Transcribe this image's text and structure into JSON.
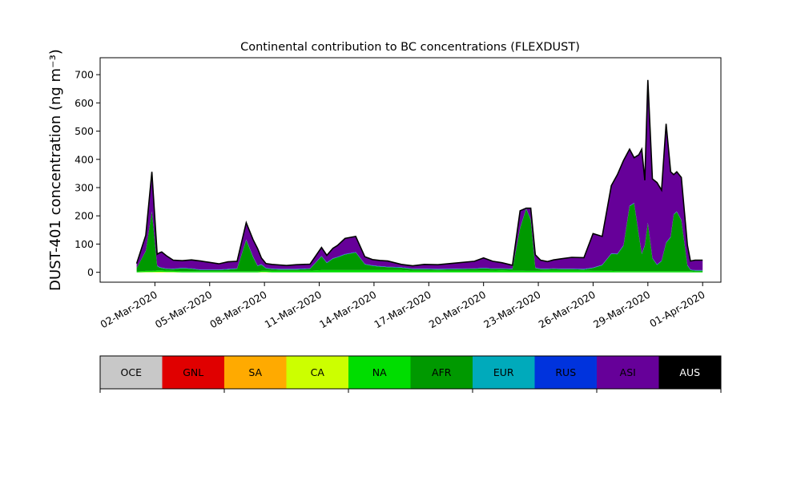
{
  "chart_data": {
    "type": "area",
    "stacked": true,
    "title": "Continental contribution to BC concentrations (FLEXDUST)",
    "ylabel": "DUST-401 concentration (ng m⁻³)",
    "xlabel": "",
    "x_axis_type": "date",
    "xlim": [
      "2020-02-28",
      "2020-04-02"
    ],
    "ylim": [
      -35,
      760
    ],
    "yticks": [
      0,
      100,
      200,
      300,
      400,
      500,
      600,
      700
    ],
    "xticks": [
      "02-Mar-2020",
      "05-Mar-2020",
      "08-Mar-2020",
      "11-Mar-2020",
      "14-Mar-2020",
      "17-Mar-2020",
      "20-Mar-2020",
      "23-Mar-2020",
      "26-Mar-2020",
      "29-Mar-2020",
      "01-Apr-2020"
    ],
    "grid": false,
    "legend_placement": "colorbar below plot",
    "x": [
      "2020-03-01 00:00",
      "2020-03-01 12:00",
      "2020-03-01 20:00",
      "2020-03-02 03:00",
      "2020-03-02 06:00",
      "2020-03-02 09:00",
      "2020-03-02 15:00",
      "2020-03-03 00:00",
      "2020-03-03 12:00",
      "2020-03-04 00:00",
      "2020-03-04 12:00",
      "2020-03-05 00:00",
      "2020-03-05 12:00",
      "2020-03-06 00:00",
      "2020-03-06 12:00",
      "2020-03-07 00:00",
      "2020-03-07 09:00",
      "2020-03-07 15:00",
      "2020-03-07 20:00",
      "2020-03-08 02:00",
      "2020-03-08 10:00",
      "2020-03-08 20:00",
      "2020-03-09 05:00",
      "2020-03-09 18:00",
      "2020-03-10 12:00",
      "2020-03-11 03:00",
      "2020-03-11 10:00",
      "2020-03-11 18:00",
      "2020-03-12 00:00",
      "2020-03-12 10:00",
      "2020-03-13 00:00",
      "2020-03-13 12:00",
      "2020-03-13 22:00",
      "2020-03-14 08:00",
      "2020-03-14 18:00",
      "2020-03-15 12:00",
      "2020-03-16 03:00",
      "2020-03-16 18:00",
      "2020-03-17 12:00",
      "2020-03-18 12:00",
      "2020-03-19 12:00",
      "2020-03-20 00:00",
      "2020-03-20 12:00",
      "2020-03-21 00:00",
      "2020-03-21 14:00",
      "2020-03-22 00:00",
      "2020-03-22 08:00",
      "2020-03-22 14:00",
      "2020-03-22 20:00",
      "2020-03-23 03:00",
      "2020-03-23 12:00",
      "2020-03-23 20:00",
      "2020-03-24 06:00",
      "2020-03-24 20:00",
      "2020-03-25 12:00",
      "2020-03-26 00:00",
      "2020-03-26 12:00",
      "2020-03-27 00:00",
      "2020-03-27 08:00",
      "2020-03-27 16:00",
      "2020-03-28 00:00",
      "2020-03-28 06:00",
      "2020-03-28 12:00",
      "2020-03-28 16:00",
      "2020-03-28 20:00",
      "2020-03-29 00:00",
      "2020-03-29 06:00",
      "2020-03-29 12:00",
      "2020-03-29 18:00",
      "2020-03-30 00:00",
      "2020-03-30 06:00",
      "2020-03-30 10:00",
      "2020-03-30 14:00",
      "2020-03-30 20:00",
      "2020-03-31 04:00",
      "2020-03-31 08:00",
      "2020-03-31 14:00",
      "2020-04-01 00:00"
    ],
    "series": [
      {
        "name": "OCE",
        "color": "#c8c8c8",
        "values": [
          0,
          0,
          0,
          0,
          0,
          0,
          0,
          0,
          0,
          0,
          0,
          0,
          0,
          0,
          0,
          0,
          0,
          0,
          0,
          0,
          0,
          0,
          0,
          0,
          0,
          0,
          0,
          0,
          0,
          0,
          0,
          0,
          0,
          0,
          0,
          0,
          0,
          0,
          0,
          0,
          0,
          0,
          0,
          0,
          0,
          0,
          0,
          0,
          0,
          0,
          0,
          0,
          0,
          0,
          0,
          0,
          0,
          0,
          0,
          0,
          0,
          0,
          0,
          0,
          0,
          0,
          0,
          0,
          0,
          0,
          0,
          0,
          0,
          0,
          0,
          0,
          0,
          0
        ]
      },
      {
        "name": "GNL",
        "color": "#e00000",
        "values": [
          0,
          0,
          0,
          0,
          0,
          0,
          0,
          0,
          0,
          0,
          0,
          0,
          0,
          0,
          0,
          0,
          0,
          0,
          0,
          0,
          0,
          0,
          0,
          0,
          0,
          0,
          0,
          0,
          0,
          0,
          0,
          0,
          0,
          0,
          0,
          0,
          0,
          0,
          0,
          0,
          0,
          0,
          0,
          0,
          0,
          0,
          0,
          0,
          0,
          0,
          0,
          0,
          0,
          0,
          0,
          0,
          0,
          0,
          0,
          0,
          0,
          0,
          0,
          0,
          0,
          0,
          0,
          0,
          0,
          0,
          0,
          0,
          0,
          0,
          0,
          0,
          0,
          0
        ]
      },
      {
        "name": "SA",
        "color": "#ffaa00",
        "values": [
          0,
          0,
          0,
          0,
          0,
          0,
          0,
          0,
          0,
          0,
          0,
          0,
          0,
          0,
          0,
          0,
          0,
          0,
          0,
          0,
          0,
          0,
          0,
          0,
          0,
          0,
          0,
          0,
          0,
          0,
          0,
          0,
          0,
          0,
          0,
          0,
          0,
          0,
          0,
          0,
          0,
          0,
          0,
          0,
          0,
          0,
          0,
          0,
          0,
          0,
          0,
          0,
          0,
          0,
          0,
          0,
          0,
          0,
          0,
          0,
          0,
          0,
          0,
          0,
          0,
          0,
          0,
          0,
          0,
          0,
          0,
          0,
          0,
          0,
          0,
          0,
          0,
          0
        ]
      },
      {
        "name": "CA",
        "color": "#ccff00",
        "values": [
          0,
          1,
          1,
          2,
          2,
          2,
          1,
          1,
          0,
          0,
          0,
          0,
          0,
          0,
          0,
          0,
          0,
          0,
          1,
          1,
          0,
          0,
          0,
          0,
          0,
          0,
          0,
          0,
          0,
          0,
          0,
          0,
          0,
          0,
          0,
          0,
          0,
          0,
          0,
          0,
          0,
          0,
          0,
          0,
          0,
          0,
          0,
          0,
          0,
          0,
          0,
          0,
          0,
          0,
          0,
          0,
          0,
          0,
          0,
          0,
          0,
          0,
          0,
          0,
          0,
          0,
          0,
          0,
          0,
          0,
          0,
          0,
          0,
          0,
          0,
          0,
          0,
          0
        ]
      },
      {
        "name": "NA",
        "color": "#00dd00",
        "values": [
          3,
          4,
          4,
          5,
          5,
          5,
          5,
          4,
          4,
          4,
          4,
          4,
          4,
          4,
          4,
          4,
          4,
          4,
          4,
          5,
          5,
          5,
          5,
          5,
          6,
          8,
          8,
          8,
          8,
          8,
          8,
          8,
          8,
          8,
          8,
          8,
          6,
          6,
          6,
          6,
          6,
          6,
          6,
          7,
          6,
          6,
          5,
          5,
          5,
          5,
          6,
          6,
          6,
          6,
          6,
          5,
          5,
          5,
          4,
          4,
          4,
          4,
          4,
          4,
          4,
          4,
          4,
          4,
          4,
          4,
          4,
          4,
          4,
          4,
          4,
          4,
          3,
          3
        ]
      },
      {
        "name": "AFR",
        "color": "#009900",
        "values": [
          12,
          70,
          210,
          15,
          10,
          8,
          6,
          6,
          10,
          8,
          4,
          4,
          4,
          6,
          8,
          110,
          50,
          18,
          22,
          8,
          6,
          5,
          5,
          5,
          6,
          48,
          25,
          40,
          45,
          55,
          62,
          20,
          15,
          12,
          10,
          8,
          5,
          5,
          4,
          5,
          6,
          8,
          6,
          5,
          5,
          150,
          220,
          180,
          10,
          6,
          5,
          6,
          5,
          5,
          4,
          10,
          20,
          60,
          60,
          90,
          230,
          240,
          130,
          60,
          90,
          170,
          45,
          22,
          35,
          100,
          120,
          200,
          210,
          180,
          20,
          4,
          3,
          3
        ]
      },
      {
        "name": "EUR",
        "color": "#00aabb",
        "values": [
          0,
          1,
          1,
          1,
          1,
          1,
          1,
          1,
          1,
          1,
          1,
          1,
          1,
          1,
          1,
          1,
          1,
          1,
          1,
          1,
          1,
          1,
          1,
          1,
          1,
          1,
          1,
          1,
          1,
          1,
          1,
          1,
          1,
          1,
          1,
          1,
          1,
          1,
          1,
          1,
          1,
          1,
          1,
          1,
          1,
          1,
          1,
          1,
          1,
          1,
          1,
          1,
          1,
          1,
          1,
          1,
          1,
          1,
          1,
          1,
          1,
          1,
          1,
          1,
          1,
          1,
          1,
          1,
          1,
          1,
          1,
          1,
          1,
          1,
          1,
          1,
          1,
          1
        ]
      },
      {
        "name": "RUS",
        "color": "#0033dd",
        "values": [
          0,
          0,
          0,
          1,
          1,
          1,
          1,
          1,
          1,
          1,
          1,
          1,
          1,
          1,
          1,
          1,
          1,
          1,
          1,
          1,
          1,
          1,
          1,
          1,
          1,
          1,
          1,
          1,
          1,
          1,
          1,
          1,
          1,
          1,
          1,
          1,
          1,
          1,
          1,
          1,
          1,
          1,
          1,
          1,
          1,
          1,
          1,
          1,
          1,
          1,
          1,
          1,
          1,
          1,
          1,
          1,
          1,
          1,
          1,
          1,
          1,
          1,
          1,
          1,
          1,
          1,
          1,
          1,
          1,
          1,
          1,
          1,
          1,
          1,
          1,
          1,
          1,
          1
        ]
      },
      {
        "name": "ASI",
        "color": "#660099",
        "values": [
          16,
          55,
          140,
          40,
          50,
          55,
          45,
          30,
          25,
          30,
          30,
          25,
          20,
          25,
          25,
          60,
          60,
          60,
          22,
          15,
          15,
          14,
          12,
          15,
          15,
          30,
          25,
          35,
          40,
          55,
          55,
          25,
          20,
          20,
          20,
          10,
          10,
          15,
          15,
          20,
          25,
          35,
          25,
          20,
          12,
          60,
          0,
          40,
          45,
          30,
          25,
          30,
          35,
          40,
          40,
          120,
          100,
          240,
          280,
          300,
          200,
          160,
          280,
          370,
          230,
          505,
          280,
          290,
          250,
          420,
          230,
          140,
          140,
          150,
          70,
          30,
          35,
          35
        ]
      },
      {
        "name": "AUS",
        "color": "#000000",
        "values": [
          0,
          0,
          0,
          0,
          0,
          0,
          0,
          0,
          0,
          0,
          0,
          0,
          0,
          0,
          0,
          0,
          0,
          0,
          0,
          0,
          0,
          0,
          0,
          0,
          0,
          0,
          0,
          0,
          0,
          0,
          0,
          0,
          0,
          0,
          0,
          0,
          0,
          0,
          0,
          0,
          0,
          0,
          0,
          0,
          0,
          0,
          0,
          0,
          0,
          0,
          0,
          0,
          0,
          0,
          0,
          0,
          0,
          0,
          0,
          0,
          0,
          0,
          0,
          0,
          0,
          0,
          0,
          0,
          0,
          0,
          0,
          0,
          0,
          0,
          0,
          0,
          0,
          0
        ]
      }
    ]
  }
}
